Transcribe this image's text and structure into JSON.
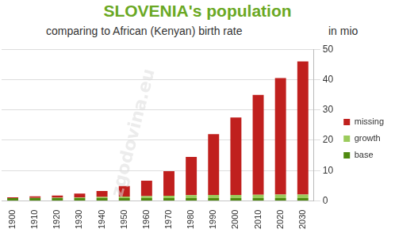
{
  "chart_data": {
    "type": "bar",
    "title": "SLOVENIA's population",
    "subtitle": "comparing to African (Kenyan) birth rate",
    "y_label": "in mio",
    "categories": [
      "1900",
      "1910",
      "1920",
      "1930",
      "1940",
      "1950",
      "1960",
      "1970",
      "1980",
      "1990",
      "2000",
      "2010",
      "2020",
      "2030"
    ],
    "series": [
      {
        "name": "base",
        "color": "#4f8a10",
        "values": [
          0.9,
          0.9,
          0.9,
          0.9,
          0.9,
          0.9,
          0.9,
          0.9,
          0.9,
          0.9,
          0.9,
          0.9,
          0.9,
          0.9
        ]
      },
      {
        "name": "growth",
        "color": "#9bcb5c",
        "values": [
          0,
          0.1,
          0.15,
          0.25,
          0.4,
          0.55,
          0.7,
          0.8,
          1.0,
          1.1,
          1.1,
          1.15,
          1.2,
          1.2
        ]
      },
      {
        "name": "missing",
        "color": "#c0201e",
        "values": [
          0.3,
          0.5,
          0.75,
          1.25,
          2.0,
          3.45,
          5.1,
          8.1,
          12.6,
          20.0,
          25.5,
          32.9,
          38.4,
          43.9
        ]
      }
    ],
    "stacked": true,
    "legend": "right",
    "grid": true,
    "ylim": [
      0,
      50
    ],
    "yticks": [
      0,
      10,
      20,
      30,
      40,
      50
    ],
    "annotations": [
      "zgodovina.eu"
    ]
  }
}
